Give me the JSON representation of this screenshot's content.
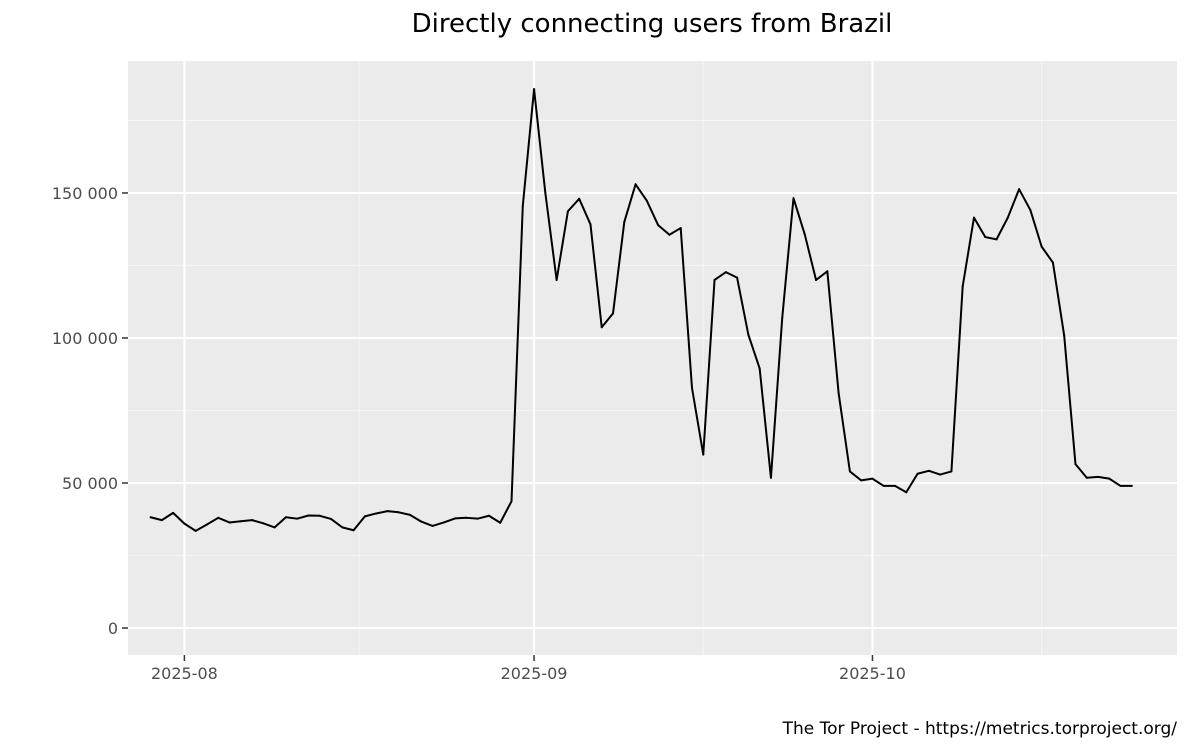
{
  "chart_data": {
    "type": "line",
    "title": "Directly connecting users from Brazil",
    "xlabel": "",
    "ylabel": "",
    "caption": "The Tor Project - https://metrics.torproject.org/",
    "x_start": "2025-07-29",
    "x_end": "2025-10-26",
    "xlim": [
      "2025-07-27",
      "2025-10-28"
    ],
    "ylim": [
      -9300,
      195500
    ],
    "x_ticks": [
      {
        "date": "2025-08-01",
        "label": "2025-08"
      },
      {
        "date": "2025-09-01",
        "label": "2025-09"
      },
      {
        "date": "2025-10-01",
        "label": "2025-10"
      }
    ],
    "y_ticks": [
      {
        "value": 0,
        "label": "0"
      },
      {
        "value": 50000,
        "label": "50 000"
      },
      {
        "value": 100000,
        "label": "100 000"
      },
      {
        "value": 150000,
        "label": "150 000"
      }
    ],
    "grid": true,
    "series": [
      {
        "values": [
          38200,
          37200,
          39700,
          36000,
          33500,
          35700,
          38000,
          36400,
          36800,
          37200,
          36100,
          34700,
          38200,
          37700,
          38800,
          38700,
          37600,
          34700,
          33700,
          38500,
          39500,
          40300,
          39900,
          39000,
          36700,
          35200,
          36400,
          37800,
          38000,
          37700,
          38700,
          36300,
          43700,
          145500,
          185800,
          150000,
          120000,
          143700,
          148000,
          139200,
          103700,
          108500,
          140000,
          153000,
          147300,
          138900,
          135600,
          137900,
          82800,
          59800,
          120000,
          122700,
          120800,
          101100,
          89500,
          51800,
          106900,
          148200,
          135700,
          120000,
          123000,
          81000,
          54000,
          50900,
          51500,
          49000,
          49000,
          46800,
          53200,
          54200,
          52900,
          54000,
          117800,
          141500,
          134800,
          134000,
          141500,
          151300,
          144100,
          131500,
          126000,
          100800,
          56500,
          51800,
          52100,
          51500,
          49000,
          49000
        ]
      }
    ],
    "colors": {
      "panel_background": "#ebebeb",
      "grid_major": "#ffffff",
      "grid_minor": "#f5f5f5",
      "line": "#000000",
      "tick": "#333333",
      "tick_label": "#4d4d4d"
    }
  }
}
